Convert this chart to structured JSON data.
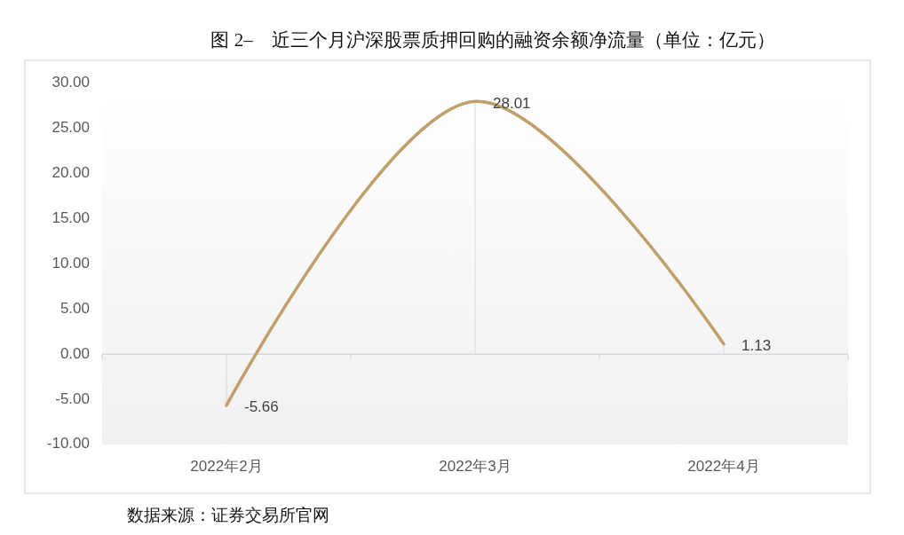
{
  "chart_data": {
    "type": "line",
    "title": "图 2–　近三个月沪深股票质押回购的融资余额净流量（单位：亿元）",
    "categories": [
      "2022年2月",
      "2022年3月",
      "2022年4月"
    ],
    "series": [
      {
        "color": "#bf9f6a",
        "values": [
          -5.66,
          28.01,
          1.13
        ]
      }
    ],
    "ylim": [
      -10,
      30
    ],
    "yticks": [
      {
        "value": -10,
        "label": "-10.00"
      },
      {
        "value": -5,
        "label": "-5.00"
      },
      {
        "value": 0,
        "label": "0.00"
      },
      {
        "value": 5,
        "label": "5.00"
      },
      {
        "value": 10,
        "label": "10.00"
      },
      {
        "value": 15,
        "label": "15.00"
      },
      {
        "value": 20,
        "label": "20.00"
      },
      {
        "value": 25,
        "label": "25.00"
      },
      {
        "value": 30,
        "label": "30.00"
      }
    ],
    "data_labels": true,
    "annotations": [
      "数据来源：证券交易所官网"
    ]
  }
}
